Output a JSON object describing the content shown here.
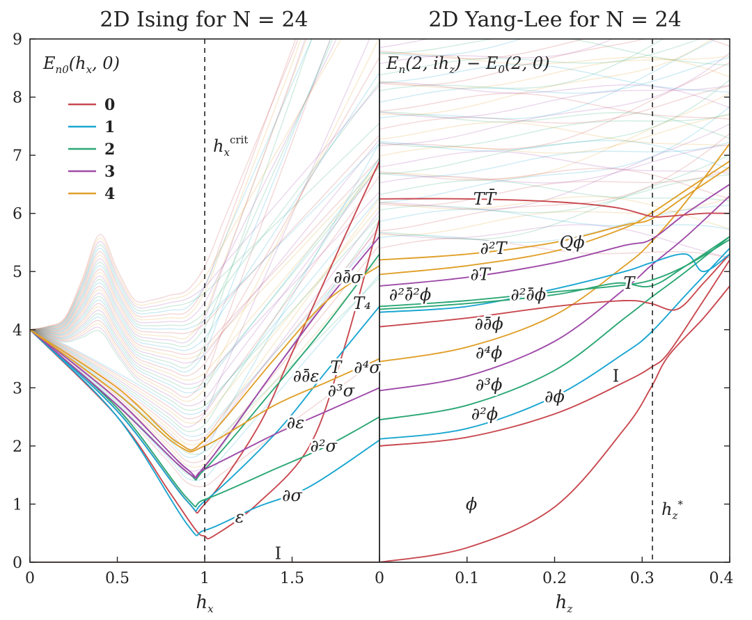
{
  "colors": {
    "0": "#c8484f",
    "1": "#1aa6d1",
    "2": "#2ba774",
    "3": "#9e4aa8",
    "4": "#e0a02a"
  },
  "chart_data": [
    {
      "type": "line",
      "panel": "left",
      "title": "2D Ising for N = 24",
      "xlabel": "h_x",
      "xlim": [
        0,
        2
      ],
      "ylim": [
        0,
        9
      ],
      "xticks": [
        "0",
        "0.5",
        "1",
        "1.5"
      ],
      "yticks": [
        "0",
        "1",
        "2",
        "3",
        "4",
        "5",
        "6",
        "7",
        "8",
        "9"
      ],
      "legend": {
        "title": "E_n0(h_x, 0)",
        "placement": "top-left",
        "entries": [
          "0",
          "1",
          "2",
          "3",
          "4"
        ]
      },
      "critical_line": {
        "x": 1,
        "label": "h_x^crit"
      },
      "series": [
        {
          "group": "0",
          "points": [
            [
              0,
              0
            ],
            [
              0.9,
              0
            ],
            [
              1,
              0
            ],
            [
              1.2,
              0
            ],
            [
              1.6,
              0
            ],
            [
              2,
              0
            ]
          ],
          "label": "I"
        },
        {
          "group": "0",
          "points": [
            [
              0,
              4
            ],
            [
              0.5,
              2.5
            ],
            [
              0.8,
              1.2
            ],
            [
              0.95,
              0.55
            ],
            [
              1,
              0.45
            ],
            [
              1.05,
              0.45
            ],
            [
              1.3,
              1.0
            ],
            [
              1.6,
              2.0
            ],
            [
              1.8,
              3.7
            ],
            [
              2,
              5.9
            ]
          ],
          "label": "ε"
        },
        {
          "group": "0",
          "points": [
            [
              0,
              4
            ],
            [
              0.5,
              2.6
            ],
            [
              0.9,
              1.05
            ],
            [
              1,
              1.0
            ],
            [
              1.3,
              2.3
            ],
            [
              1.5,
              3.6
            ],
            [
              1.8,
              5.6
            ],
            [
              2,
              6.9
            ]
          ],
          "label": "∂∂̄σ"
        },
        {
          "group": "1",
          "points": [
            [
              0,
              4
            ],
            [
              0.5,
              2.5
            ],
            [
              0.9,
              0.65
            ],
            [
              1,
              0.55
            ],
            [
              1.3,
              0.95
            ],
            [
              1.6,
              1.3
            ],
            [
              2,
              2.1
            ]
          ],
          "label": "∂σ"
        },
        {
          "group": "1",
          "points": [
            [
              0,
              4
            ],
            [
              0.5,
              2.6
            ],
            [
              0.9,
              1.05
            ],
            [
              1,
              1.05
            ],
            [
              1.4,
              2.2
            ],
            [
              1.7,
              3.3
            ],
            [
              2,
              4.4
            ]
          ],
          "label": "T"
        },
        {
          "group": "2",
          "points": [
            [
              0,
              4
            ],
            [
              0.5,
              2.65
            ],
            [
              0.9,
              1.1
            ],
            [
              1,
              1.08
            ],
            [
              1.4,
              1.6
            ],
            [
              1.7,
              2.0
            ],
            [
              2,
              2.5
            ]
          ],
          "label": "∂²σ"
        },
        {
          "group": "2",
          "points": [
            [
              0,
              4
            ],
            [
              0.5,
              2.7
            ],
            [
              0.9,
              1.55
            ],
            [
              1,
              1.6
            ],
            [
              1.4,
              3.0
            ],
            [
              1.7,
              4.1
            ],
            [
              2,
              5.3
            ]
          ],
          "label": "∂ε"
        },
        {
          "group": "3",
          "points": [
            [
              0,
              4
            ],
            [
              0.5,
              2.7
            ],
            [
              0.9,
              1.55
            ],
            [
              1,
              1.6
            ],
            [
              1.4,
              2.2
            ],
            [
              1.7,
              2.6
            ],
            [
              2,
              3.0
            ]
          ],
          "label": "∂³σ"
        },
        {
          "group": "3",
          "points": [
            [
              0,
              4
            ],
            [
              0.5,
              2.8
            ],
            [
              0.9,
              1.6
            ],
            [
              1,
              1.65
            ],
            [
              1.4,
              3.3
            ],
            [
              1.7,
              4.5
            ],
            [
              2,
              5.6
            ]
          ],
          "label": "∂∂̄ε"
        },
        {
          "group": "4",
          "points": [
            [
              0,
              4
            ],
            [
              0.5,
              2.9
            ],
            [
              0.85,
              2.0
            ],
            [
              1,
              2.0
            ],
            [
              1.4,
              2.7
            ],
            [
              1.7,
              3.1
            ],
            [
              2,
              3.5
            ]
          ],
          "label": "∂⁴σ"
        },
        {
          "group": "4",
          "points": [
            [
              0,
              4
            ],
            [
              0.5,
              3.0
            ],
            [
              0.85,
              2.05
            ],
            [
              1,
              2.1
            ],
            [
              1.4,
              3.5
            ],
            [
              1.7,
              4.5
            ],
            [
              2,
              5.1
            ]
          ],
          "label": "T₄"
        }
      ]
    },
    {
      "type": "line",
      "panel": "right",
      "title": "2D Yang-Lee for N = 24",
      "xlabel": "h_z",
      "xlim": [
        0,
        0.4
      ],
      "ylim": [
        0,
        9
      ],
      "xticks": [
        "0",
        "0.1",
        "0.2",
        "0.3",
        "0.4"
      ],
      "legend": {
        "title": "E_n(2, ih_z) − E_0(2, 0)",
        "placement": "top-left"
      },
      "critical_line": {
        "x": 0.312,
        "label": "h_z^*"
      },
      "series": [
        {
          "group": "0",
          "points": [
            [
              0,
              0
            ],
            [
              0.1,
              0.25
            ],
            [
              0.2,
              0.95
            ],
            [
              0.28,
              2.3
            ],
            [
              0.31,
              3.0
            ],
            [
              0.33,
              3.55
            ],
            [
              0.37,
              4.2
            ],
            [
              0.4,
              4.75
            ]
          ],
          "label": "ϕ"
        },
        {
          "group": "0",
          "points": [
            [
              0,
              2.0
            ],
            [
              0.1,
              2.15
            ],
            [
              0.2,
              2.55
            ],
            [
              0.28,
              3.1
            ],
            [
              0.31,
              3.35
            ],
            [
              0.33,
              3.6
            ],
            [
              0.37,
              4.5
            ],
            [
              0.4,
              5.2
            ]
          ],
          "label": "I"
        },
        {
          "group": "1",
          "points": [
            [
              0,
              2.12
            ],
            [
              0.1,
              2.3
            ],
            [
              0.2,
              2.85
            ],
            [
              0.28,
              3.6
            ],
            [
              0.31,
              3.95
            ],
            [
              0.35,
              4.6
            ],
            [
              0.4,
              5.4
            ]
          ],
          "label": "∂ϕ"
        },
        {
          "group": "2",
          "points": [
            [
              0,
              2.45
            ],
            [
              0.1,
              2.7
            ],
            [
              0.2,
              3.3
            ],
            [
              0.28,
              4.2
            ],
            [
              0.31,
              4.55
            ],
            [
              0.35,
              5.0
            ],
            [
              0.4,
              5.6
            ]
          ],
          "label": "∂²ϕ"
        },
        {
          "group": "3",
          "points": [
            [
              0,
              2.95
            ],
            [
              0.1,
              3.2
            ],
            [
              0.2,
              3.8
            ],
            [
              0.28,
              4.7
            ],
            [
              0.31,
              5.1
            ],
            [
              0.35,
              5.6
            ],
            [
              0.4,
              6.3
            ]
          ],
          "label": "∂³ϕ"
        },
        {
          "group": "4",
          "points": [
            [
              0,
              3.45
            ],
            [
              0.1,
              3.7
            ],
            [
              0.2,
              4.25
            ],
            [
              0.28,
              5.1
            ],
            [
              0.31,
              5.5
            ],
            [
              0.35,
              6.2
            ],
            [
              0.4,
              7.2
            ]
          ],
          "label": "∂⁴ϕ"
        },
        {
          "group": "0",
          "points": [
            [
              0,
              4.05
            ],
            [
              0.1,
              4.2
            ],
            [
              0.2,
              4.4
            ],
            [
              0.28,
              4.5
            ],
            [
              0.31,
              4.45
            ],
            [
              0.34,
              4.35
            ],
            [
              0.37,
              4.8
            ],
            [
              0.4,
              5.3
            ]
          ],
          "label": "∂∂̄ϕ"
        },
        {
          "group": "1",
          "points": [
            [
              0,
              4.3
            ],
            [
              0.1,
              4.4
            ],
            [
              0.2,
              4.7
            ],
            [
              0.28,
              5.0
            ],
            [
              0.31,
              5.15
            ],
            [
              0.35,
              5.3
            ],
            [
              0.37,
              5.0
            ],
            [
              0.4,
              5.3
            ]
          ],
          "label": "∂²∂̄ϕ"
        },
        {
          "group": "2",
          "points": [
            [
              0,
              4.35
            ],
            [
              0.1,
              4.45
            ],
            [
              0.2,
              4.6
            ],
            [
              0.27,
              4.8
            ],
            [
              0.31,
              4.75
            ],
            [
              0.35,
              5.1
            ],
            [
              0.4,
              5.6
            ]
          ],
          "label": "∂²∂̄²ϕ"
        },
        {
          "group": "3",
          "points": [
            [
              0,
              4.75
            ],
            [
              0.1,
              4.9
            ],
            [
              0.2,
              5.15
            ],
            [
              0.28,
              5.45
            ],
            [
              0.31,
              5.55
            ],
            [
              0.35,
              6.0
            ],
            [
              0.4,
              6.5
            ]
          ],
          "label": "∂T"
        },
        {
          "group": "4",
          "points": [
            [
              0,
              4.95
            ],
            [
              0.1,
              5.1
            ],
            [
              0.2,
              5.35
            ],
            [
              0.28,
              5.75
            ],
            [
              0.31,
              6.0
            ],
            [
              0.35,
              6.4
            ],
            [
              0.4,
              6.9
            ]
          ],
          "label": "∂²T"
        },
        {
          "group": "4",
          "points": [
            [
              0,
              5.2
            ],
            [
              0.1,
              5.3
            ],
            [
              0.2,
              5.5
            ],
            [
              0.28,
              5.8
            ],
            [
              0.31,
              5.9
            ],
            [
              0.35,
              6.3
            ],
            [
              0.4,
              6.8
            ]
          ],
          "label": "Qϕ"
        },
        {
          "group": "2",
          "points": [
            [
              0,
              4.4
            ],
            [
              0.1,
              4.5
            ],
            [
              0.2,
              4.65
            ],
            [
              0.27,
              4.75
            ],
            [
              0.31,
              4.85
            ],
            [
              0.35,
              5.1
            ],
            [
              0.4,
              5.55
            ]
          ],
          "label": "T"
        },
        {
          "group": "0",
          "points": [
            [
              0,
              6.25
            ],
            [
              0.1,
              6.25
            ],
            [
              0.2,
              6.2
            ],
            [
              0.27,
              6.1
            ],
            [
              0.31,
              5.95
            ],
            [
              0.33,
              5.95
            ],
            [
              0.37,
              6.0
            ],
            [
              0.4,
              6.0
            ]
          ],
          "label": "TT̄"
        }
      ]
    }
  ]
}
